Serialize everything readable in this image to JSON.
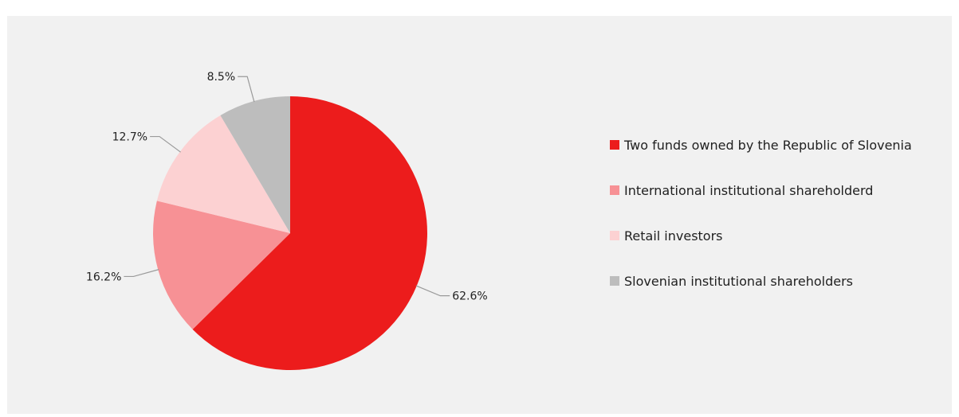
{
  "title": "",
  "chart_data": {
    "type": "pie",
    "legend_position": "right",
    "series": [
      {
        "name": "Two funds owned by the Republic of Slovenia",
        "value": 62.6,
        "label": "62.6%",
        "color": "#ec1c1c"
      },
      {
        "name": "International institutional shareholderd",
        "value": 16.2,
        "label": "16.2%",
        "color": "#f79195"
      },
      {
        "name": "Retail investors",
        "value": 12.7,
        "label": "12.7%",
        "color": "#fcd1d2"
      },
      {
        "name": "Slovenian institutional shareholders",
        "value": 8.5,
        "label": "8.5%",
        "color": "#bdbdbd"
      }
    ]
  }
}
